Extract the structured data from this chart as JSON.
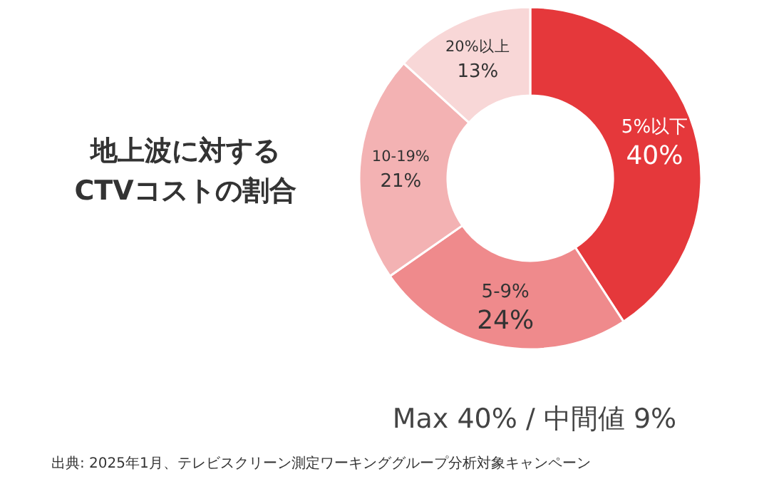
{
  "chart_data": {
    "type": "donut",
    "title": "地上波に対する\nCTVコストの割合",
    "categories": [
      "5%以下",
      "5-9%",
      "10-19%",
      "20%以上"
    ],
    "values": [
      40,
      24,
      21,
      13
    ],
    "colors": [
      "#e5383b",
      "#ef8a8c",
      "#f3b2b3",
      "#f8d7d7"
    ],
    "value_labels": [
      "40%",
      "24%",
      "21%",
      "13%"
    ],
    "annotations": [
      "Max 40% / 中間値 9%",
      "出典: 2025年1月、テレビスクリーン測定ワーキンググループ分析対象キャンペーン"
    ]
  }
}
